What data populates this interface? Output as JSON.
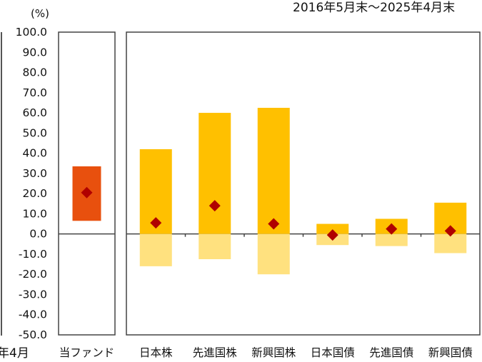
{
  "header": {
    "top_right_text": "2016年5月末～2025年4月末",
    "left_date_fragment": "年4月"
  },
  "chart_data": {
    "type": "bar",
    "yunit": "(%)",
    "ylim": [
      -50,
      100
    ],
    "yticks": [
      100,
      90,
      80,
      70,
      60,
      50,
      40,
      30,
      20,
      10,
      0,
      -10,
      -20,
      -30,
      -40,
      -50
    ],
    "grid": false,
    "panels": [
      {
        "categories": [
          "当ファンド"
        ],
        "max": [
          33.5
        ],
        "min": [
          6.5
        ],
        "avg": [
          20.5
        ]
      },
      {
        "categories": [
          "日本株",
          "先進国株",
          "新興国株",
          "日本国債",
          "先進国債",
          "新興国債"
        ],
        "max": [
          42.0,
          60.0,
          62.5,
          5.0,
          7.5,
          15.5
        ],
        "min": [
          -16.0,
          -12.5,
          -20.0,
          -5.5,
          -6.0,
          -9.5
        ],
        "avg": [
          5.5,
          14.0,
          5.0,
          -0.5,
          2.5,
          1.5
        ]
      }
    ],
    "colors": {
      "fund_bar": "#e8500e",
      "asset_positive": "#ffc000",
      "asset_negative": "#ffe17f",
      "avg_marker": "#b00000",
      "axis": "#444444"
    }
  }
}
